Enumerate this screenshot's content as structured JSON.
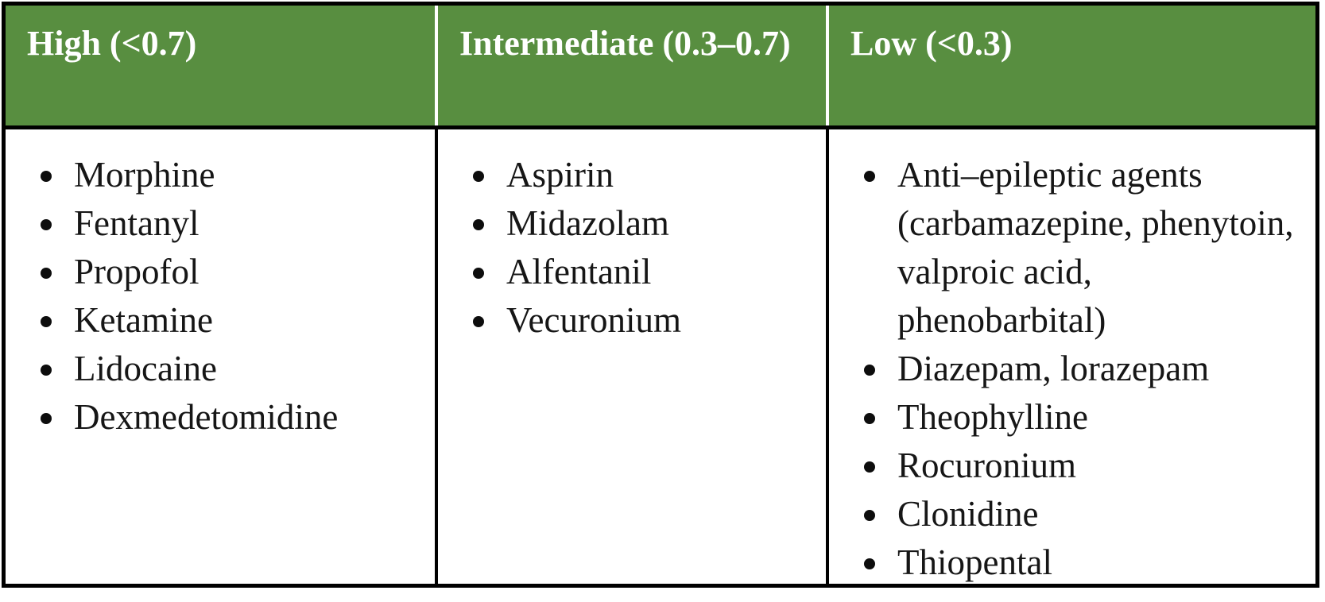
{
  "table": {
    "title_semantic": "Hepatic extraction ratio drug categories",
    "colors": {
      "header_bg": "#588e40",
      "header_text": "#ffffff",
      "body_text": "#161616",
      "border": "#000000",
      "header_separator": "#ffffff"
    },
    "columns": [
      {
        "header": "High (<0.7)",
        "items": [
          "Morphine",
          "Fentanyl",
          "Propofol",
          "Ketamine",
          "Lidocaine",
          "Dexmedetomidine"
        ]
      },
      {
        "header": "Intermediate (0.3–0.7)",
        "items": [
          "Aspirin",
          "Midazolam",
          "Alfentanil",
          "Vecuronium"
        ]
      },
      {
        "header": "Low (<0.3)",
        "items": [
          "Anti–epileptic agents (carbamazepine, phenytoin, valproic acid, phenobarbital)",
          "Diazepam, lorazepam",
          "Theophylline",
          "Rocuronium",
          "Clonidine",
          "Thiopental"
        ]
      }
    ]
  }
}
